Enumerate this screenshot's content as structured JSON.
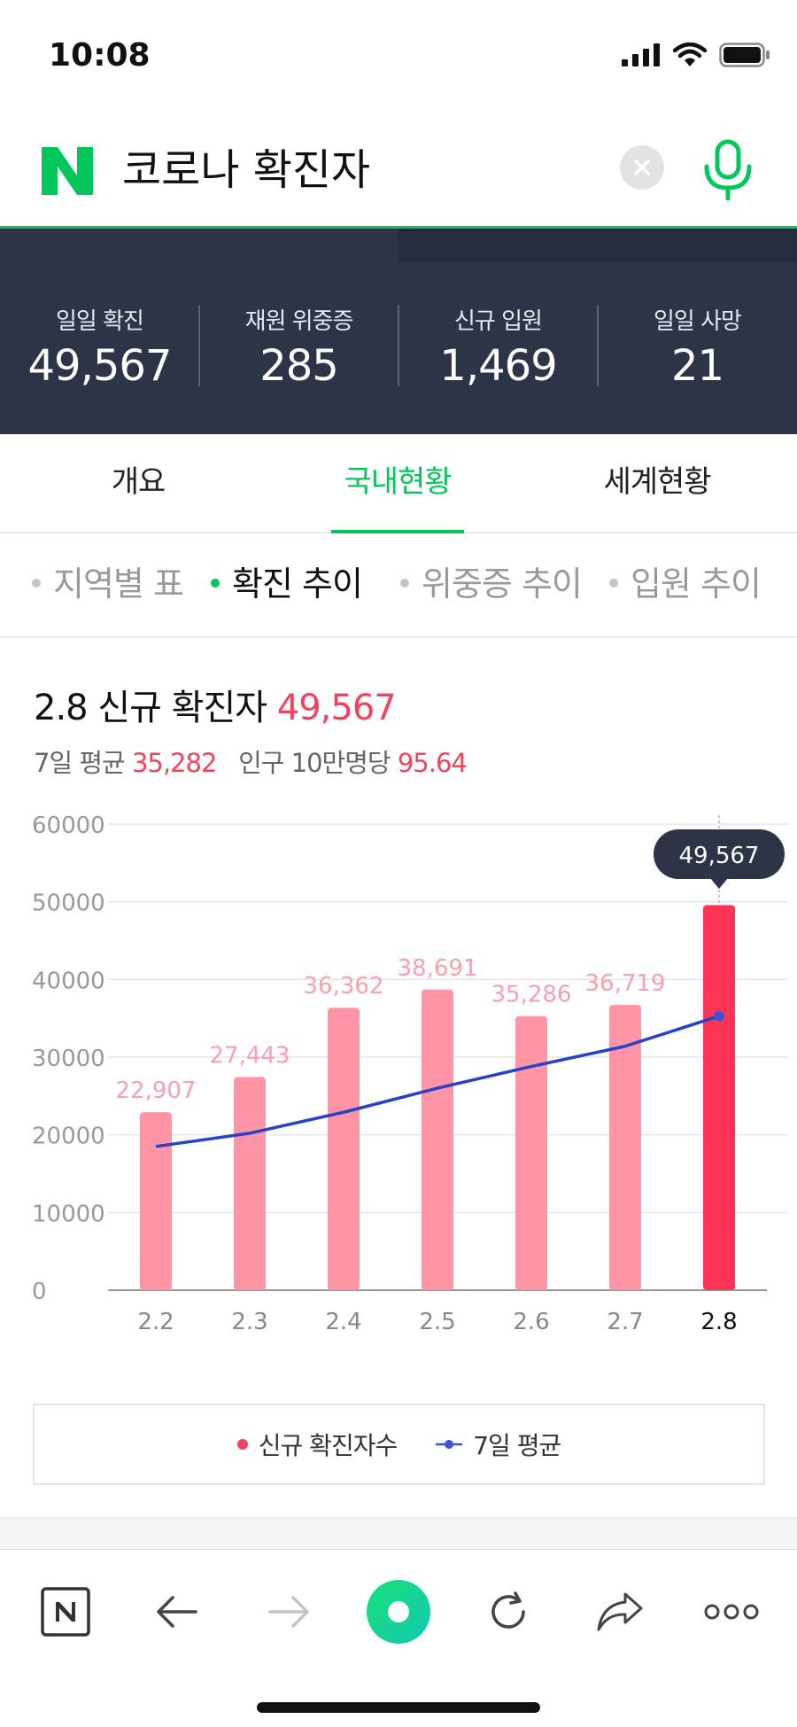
{
  "status_bar": {
    "time": "10:08"
  },
  "search": {
    "query": "코로나 확진자"
  },
  "stats": [
    {
      "label": "일일 확진",
      "value": "49,567"
    },
    {
      "label": "재원 위중증",
      "value": "285"
    },
    {
      "label": "신규 입원",
      "value": "1,469"
    },
    {
      "label": "일일 사망",
      "value": "21"
    }
  ],
  "main_tabs": [
    {
      "label": "개요"
    },
    {
      "label": "국내현황"
    },
    {
      "label": "세계현황"
    }
  ],
  "sub_tabs": [
    {
      "label": "지역별 표"
    },
    {
      "label": "확진 추이"
    },
    {
      "label": "위중증 추이"
    },
    {
      "label": "입원 추이"
    }
  ],
  "heading": {
    "date": "2.8",
    "title": "신규 확진자",
    "value": "49,567",
    "avg_label": "7일 평균",
    "avg_value": "35,282",
    "per_label": "인구 10만명당",
    "per_value": "95.64"
  },
  "chart_data": {
    "type": "bar",
    "categories": [
      "2.2",
      "2.3",
      "2.4",
      "2.5",
      "2.6",
      "2.7",
      "2.8"
    ],
    "series": [
      {
        "name": "신규 확진자수",
        "values": [
          22907,
          27443,
          36362,
          38691,
          35286,
          36719,
          49567
        ],
        "color": "#ff94a6",
        "highlight_color": "#ff3355"
      },
      {
        "name": "7일 평균",
        "type": "line",
        "values": [
          18500,
          20200,
          22900,
          26000,
          28800,
          31400,
          35282
        ],
        "color": "#2a40c8"
      }
    ],
    "data_labels": [
      "22,907",
      "27,443",
      "36,362",
      "38,691",
      "35,286",
      "36,719",
      "49,567"
    ],
    "yticks": [
      "60000",
      "50000",
      "40000",
      "30000",
      "20000",
      "10000",
      "0"
    ],
    "ylim": [
      0,
      60000
    ],
    "grid": true,
    "highlight_index": 6
  },
  "legend": {
    "new_cases": "신규 확진자수",
    "avg": "7일 평균"
  },
  "colors": {
    "accent": "#03c75a",
    "red": "#f0445e",
    "panel": "#2d3448"
  },
  "bottom_nav": [
    "n-logo-icon",
    "back-arrow-icon",
    "forward-arrow-icon",
    "green-dot-icon",
    "refresh-icon",
    "share-icon",
    "more-icon"
  ]
}
